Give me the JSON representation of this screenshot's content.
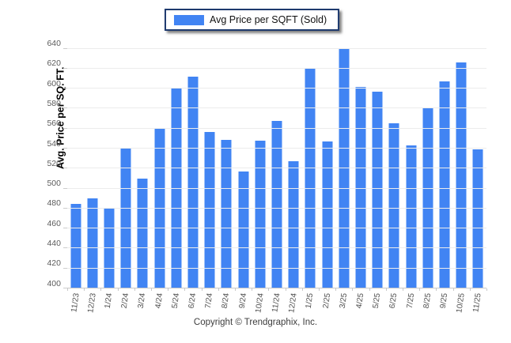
{
  "legend": {
    "label": "Avg Price per SQFT (Sold)",
    "swatch_color": "#4184F3",
    "border_color": "#1e3a6e"
  },
  "footer": {
    "copyright": "Copyright © Trendgraphix, Inc."
  },
  "colors": {
    "bar": "#4184F3",
    "gridline": "#ececec",
    "axis_text": "#5c5c5c"
  },
  "chart_data": {
    "type": "bar",
    "title": "",
    "xlabel": "",
    "ylabel": "Avg. Price per SQ. FT.",
    "series_name": "Avg Price per SQFT (Sold)",
    "categories": [
      "11/23",
      "12/23",
      "1/24",
      "2/24",
      "3/24",
      "4/24",
      "5/24",
      "6/24",
      "7/24",
      "8/24",
      "9/24",
      "10/24",
      "11/24",
      "12/24",
      "1/25",
      "2/25",
      "3/25",
      "4/25",
      "5/25",
      "6/25",
      "7/25",
      "8/25",
      "9/25",
      "10/25",
      "11/25"
    ],
    "values": [
      485,
      490,
      480,
      541,
      510,
      561,
      601,
      612,
      557,
      549,
      517,
      548,
      568,
      527,
      620,
      547,
      640,
      602,
      597,
      565,
      543,
      580,
      607,
      626,
      539
    ],
    "ylim": [
      400,
      650
    ],
    "ytick_min": 400,
    "ytick_max": 640,
    "ytick_step": 20,
    "grid": true,
    "legend_position": "top-center",
    "bar_color": "#4184F3"
  }
}
